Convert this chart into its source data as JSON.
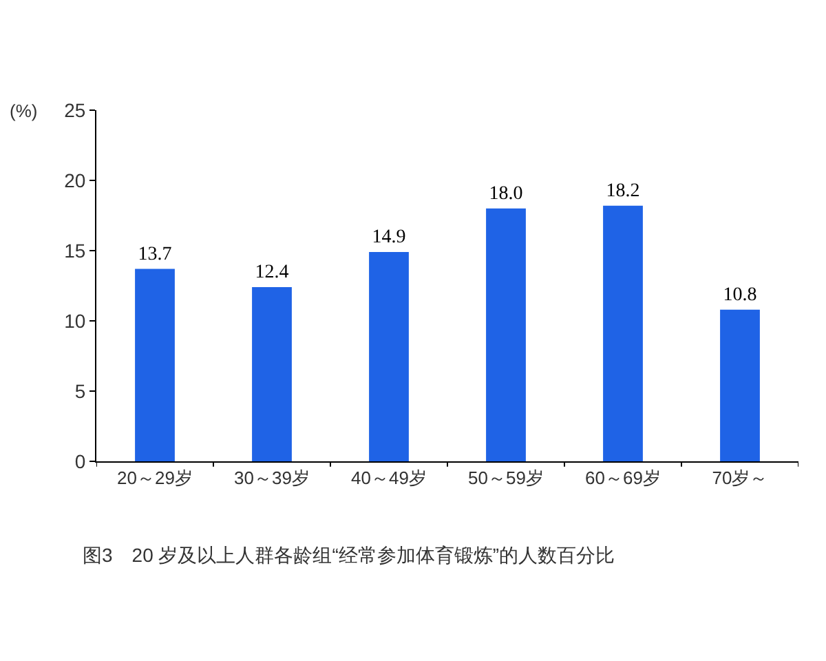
{
  "chart_data": {
    "type": "bar",
    "title": "图3　20 岁及以上人群各龄组“经常参加体育锻炼”的人数百分比",
    "ylabel": "(%)",
    "categories": [
      "20～29岁",
      "30～39岁",
      "40～49岁",
      "50～59岁",
      "60～69岁",
      "70岁～"
    ],
    "values": [
      13.7,
      12.4,
      14.9,
      18.0,
      18.2,
      10.8
    ],
    "value_labels": [
      "13.7",
      "12.4",
      "14.9",
      "18.0",
      "18.2",
      "10.8"
    ],
    "color": "#1f63e6",
    "ylim": [
      0,
      25
    ],
    "yticks": [
      0,
      5,
      10,
      15,
      20,
      25
    ],
    "grid": false
  }
}
